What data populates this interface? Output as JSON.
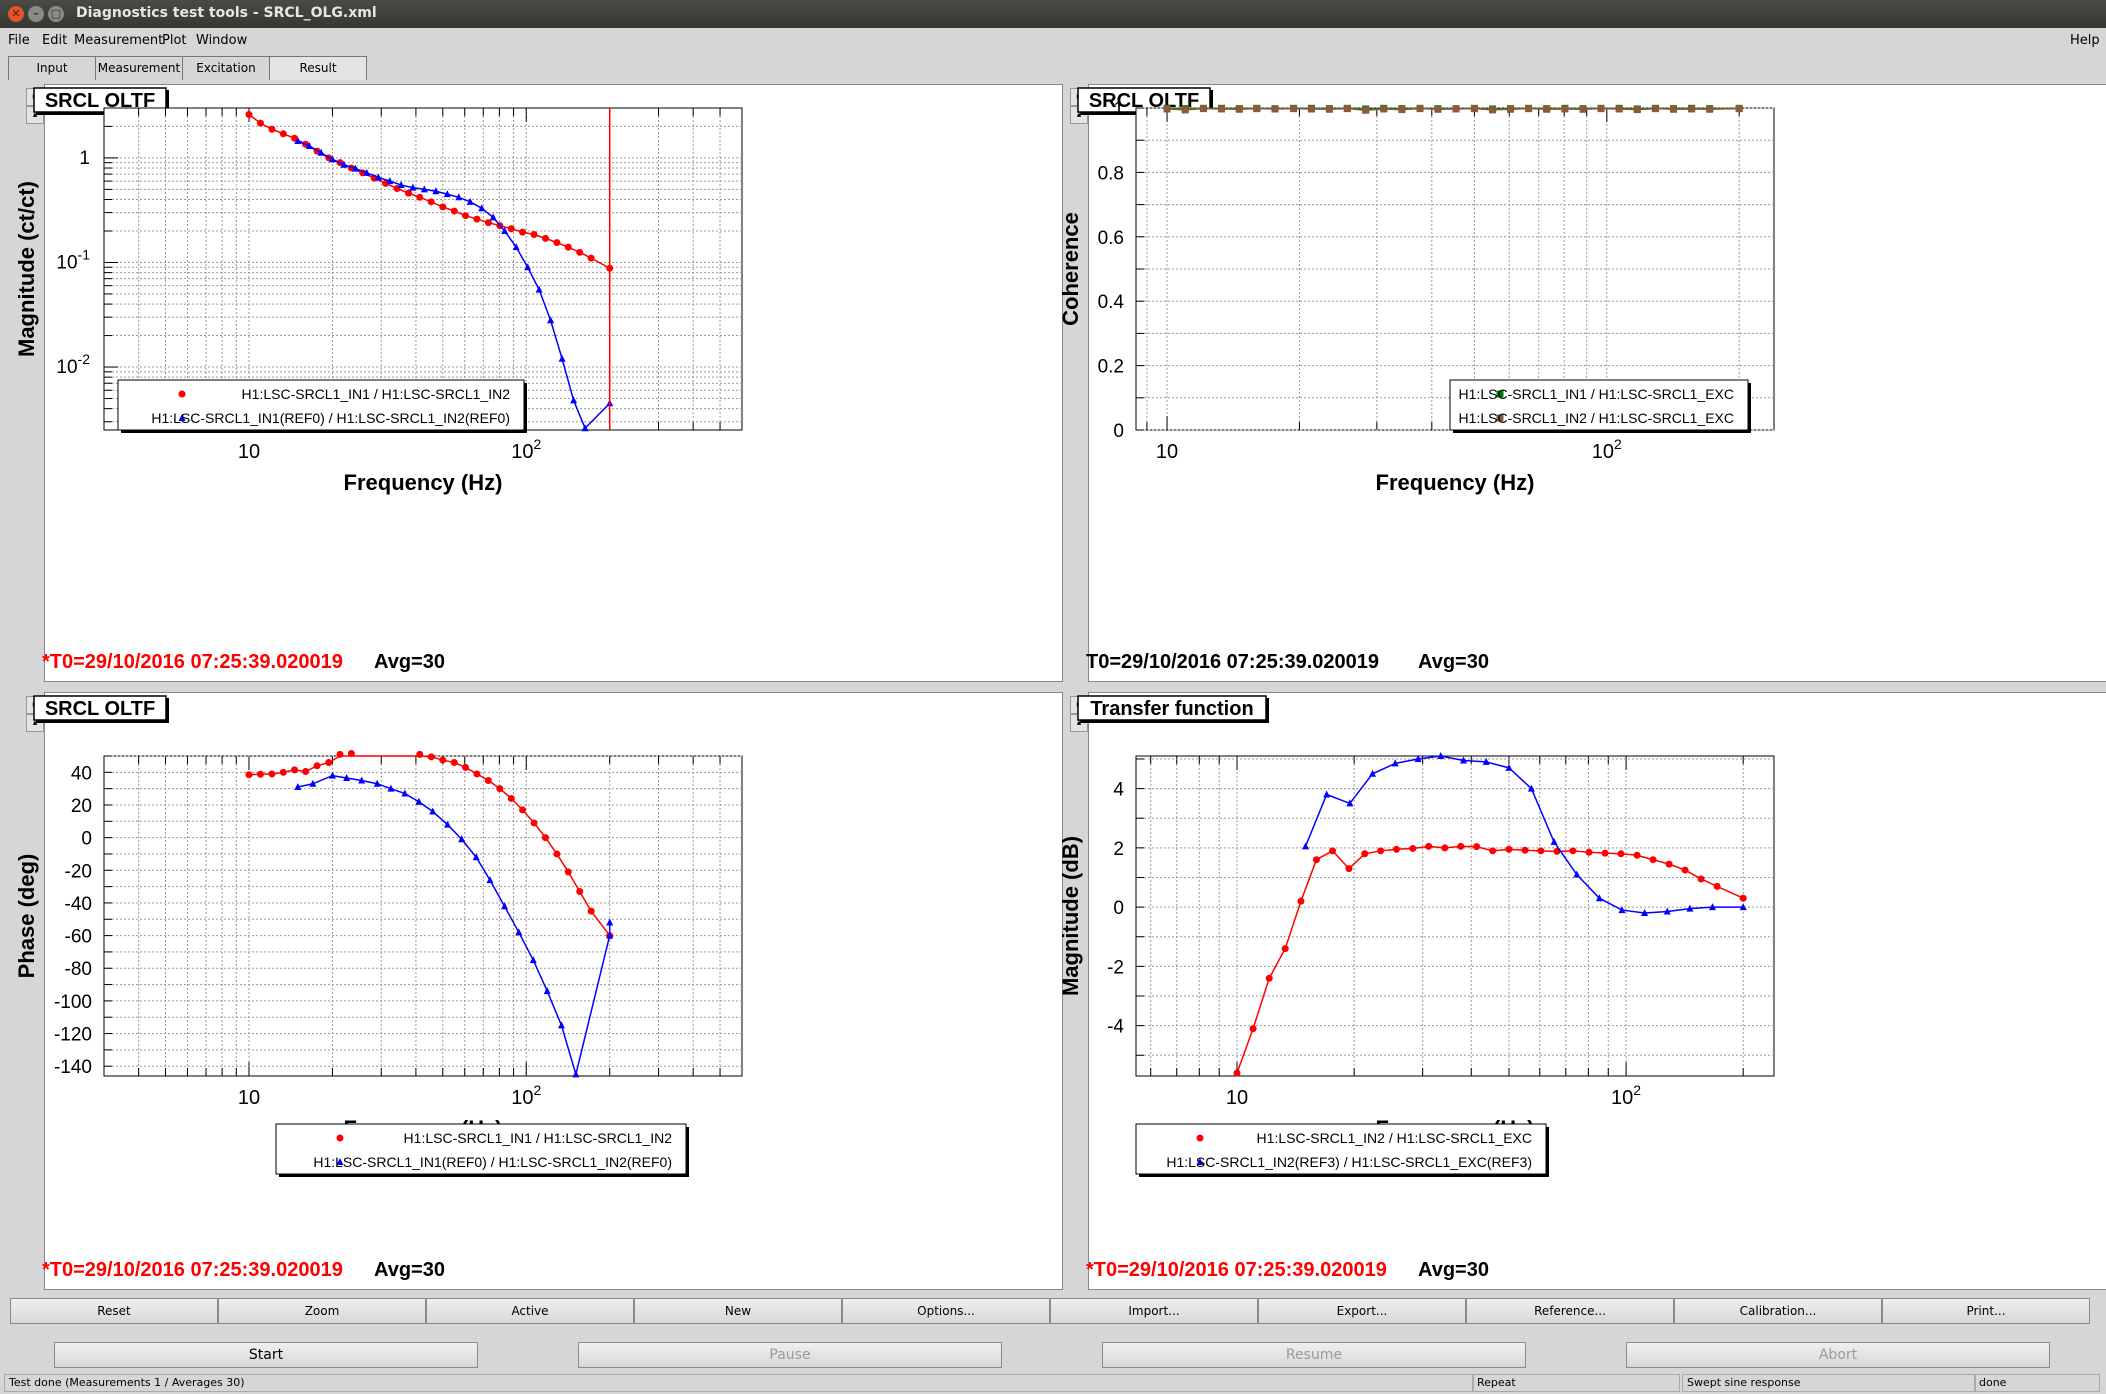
{
  "window": {
    "title": "Diagnostics test tools - SRCL_OLG.xml"
  },
  "menu": {
    "file": "File",
    "edit": "Edit",
    "measurement": "Measurement",
    "plot": "Plot",
    "window": "Window",
    "help": "Help"
  },
  "tabs": [
    "Input",
    "Measurement",
    "Excitation",
    "Result"
  ],
  "panels": [
    {
      "title": "SRCL OLTF",
      "status_t0": "*T0=29/10/2016 07:25:39.020019",
      "status_avg": "Avg=30",
      "ylabel": "Magnitude (ct/ct)",
      "xlabel": "Frequency (Hz)",
      "legend": [
        "H1:LSC-SRCL1_IN1 / H1:LSC-SRCL1_IN2",
        "H1:LSC-SRCL1_IN1(REF0) / H1:LSC-SRCL1_IN2(REF0)"
      ]
    },
    {
      "title": "SRCL OLTF",
      "status_t0": "T0=29/10/2016 07:25:39.020019",
      "status_avg": "Avg=30",
      "ylabel": "Coherence",
      "xlabel": "Frequency (Hz)",
      "legend": [
        "H1:LSC-SRCL1_IN1 / H1:LSC-SRCL1_EXC",
        "H1:LSC-SRCL1_IN2 / H1:LSC-SRCL1_EXC"
      ]
    },
    {
      "title": "SRCL OLTF",
      "status_t0": "*T0=29/10/2016 07:25:39.020019",
      "status_avg": "Avg=30",
      "ylabel": "Phase (deg)",
      "xlabel": "Frequency (Hz)",
      "legend": [
        "H1:LSC-SRCL1_IN1 / H1:LSC-SRCL1_IN2",
        "H1:LSC-SRCL1_IN1(REF0) / H1:LSC-SRCL1_IN2(REF0)"
      ]
    },
    {
      "title": "Transfer function",
      "status_t0": "*T0=29/10/2016 07:25:39.020019",
      "status_avg": "Avg=30",
      "ylabel": "Magnitude (dB)",
      "xlabel": "Frequency (Hz)",
      "legend": [
        "H1:LSC-SRCL1_IN2 / H1:LSC-SRCL1_EXC",
        "H1:LSC-SRCL1_IN2(REF3) / H1:LSC-SRCL1_EXC(REF3)"
      ]
    }
  ],
  "chart_data": [
    {
      "type": "line",
      "title": "SRCL OLTF",
      "xlabel": "Frequency (Hz)",
      "ylabel": "Magnitude (ct/ct)",
      "xscale": "log",
      "yscale": "log",
      "xlim": [
        3,
        600
      ],
      "ylim": [
        0.0025,
        3
      ],
      "x_ticks": [
        "10",
        "10^2"
      ],
      "y_ticks": [
        "10^-2",
        "10^-1",
        "1"
      ],
      "grid": true,
      "legend_position": "bottom-center",
      "colors": [
        "#ff0000",
        "#0000ff"
      ],
      "series": [
        {
          "name": "H1:LSC-SRCL1_IN1 / H1:LSC-SRCL1_IN2",
          "marker": "circle",
          "x": [
            10,
            11,
            12.1,
            13.3,
            14.6,
            16,
            17.6,
            19.4,
            21.3,
            23.4,
            25.7,
            28.3,
            31.1,
            34.2,
            37.6,
            41.3,
            45.4,
            50,
            55,
            60.4,
            66.4,
            73,
            80.3,
            88.3,
            97,
            106.7,
            117.3,
            129,
            141.8,
            155.9,
            171.4,
            200
          ],
          "y": [
            2.6,
            2.15,
            1.88,
            1.7,
            1.54,
            1.35,
            1.16,
            1.0,
            0.9,
            0.8,
            0.72,
            0.64,
            0.57,
            0.51,
            0.46,
            0.42,
            0.38,
            0.34,
            0.31,
            0.28,
            0.26,
            0.24,
            0.225,
            0.21,
            0.195,
            0.185,
            0.17,
            0.155,
            0.14,
            0.125,
            0.11,
            0.088
          ]
        },
        {
          "name": "H1:LSC-SRCL1_IN1(REF0) / H1:LSC-SRCL1_IN2(REF0)",
          "marker": "triangle",
          "x": [
            15,
            16.5,
            18.2,
            20,
            22,
            24.2,
            26.6,
            29.3,
            32.2,
            35.4,
            39,
            42.9,
            47.2,
            51.9,
            57.1,
            62.8,
            69.1,
            76,
            83.6,
            92,
            101.2,
            111.3,
            122.4,
            134.7,
            148.2,
            163,
            200
          ],
          "y": [
            1.45,
            1.3,
            1.12,
            0.97,
            0.86,
            0.79,
            0.72,
            0.65,
            0.6,
            0.55,
            0.52,
            0.5,
            0.48,
            0.45,
            0.42,
            0.38,
            0.33,
            0.27,
            0.2,
            0.14,
            0.09,
            0.055,
            0.028,
            0.012,
            0.0048,
            0.0026,
            0.0045
          ]
        }
      ]
    },
    {
      "type": "line",
      "title": "SRCL OLTF",
      "xlabel": "Frequency (Hz)",
      "ylabel": "Coherence",
      "xscale": "log",
      "xlim": [
        8.5,
        240
      ],
      "ylim": [
        0,
        1
      ],
      "x_ticks": [
        "10",
        "10^2"
      ],
      "y_ticks": [
        "0",
        "0.2",
        "0.4",
        "0.6",
        "0.8",
        "1"
      ],
      "grid": true,
      "legend_position": "bottom-right",
      "colors": [
        "#008000",
        "#8b5a3c"
      ],
      "series": [
        {
          "name": "H1:LSC-SRCL1_IN1 / H1:LSC-SRCL1_EXC",
          "marker": "square",
          "x": [
            10,
            11,
            12.1,
            13.3,
            14.6,
            16,
            17.6,
            19.4,
            21.3,
            23.4,
            25.7,
            28.3,
            31.1,
            34.2,
            37.6,
            41.3,
            45.4,
            50,
            55,
            60.4,
            66.4,
            73,
            80.3,
            88.3,
            97,
            106.7,
            117.3,
            129,
            141.8,
            155.9,
            171.4,
            200
          ],
          "y": [
            0.999,
            0.998,
            0.999,
            0.999,
            0.998,
            0.999,
            0.998,
            0.999,
            0.999,
            0.998,
            0.999,
            0.997,
            0.999,
            0.998,
            0.999,
            0.998,
            0.998,
            0.999,
            0.997,
            0.998,
            0.999,
            0.998,
            0.999,
            0.998,
            0.999,
            0.999,
            0.997,
            0.999,
            0.998,
            0.999,
            0.998,
            0.999
          ]
        },
        {
          "name": "H1:LSC-SRCL1_IN2 / H1:LSC-SRCL1_EXC",
          "marker": "square",
          "x": [
            10,
            11,
            12.1,
            13.3,
            14.6,
            16,
            17.6,
            19.4,
            21.3,
            23.4,
            25.7,
            28.3,
            31.1,
            34.2,
            37.6,
            41.3,
            45.4,
            50,
            55,
            60.4,
            66.4,
            73,
            80.3,
            88.3,
            97,
            106.7,
            117.3,
            129,
            141.8,
            155.9,
            171.4,
            200
          ],
          "y": [
            0.997,
            0.994,
            0.998,
            0.997,
            0.996,
            0.998,
            0.997,
            0.998,
            0.997,
            0.996,
            0.998,
            0.993,
            0.997,
            0.995,
            0.998,
            0.996,
            0.997,
            0.998,
            0.994,
            0.996,
            0.998,
            0.996,
            0.997,
            0.996,
            0.998,
            0.997,
            0.995,
            0.998,
            0.996,
            0.997,
            0.996,
            0.998
          ]
        }
      ]
    },
    {
      "type": "line",
      "title": "SRCL OLTF",
      "xlabel": "Frequency (Hz)",
      "ylabel": "Phase (deg)",
      "xscale": "log",
      "xlim": [
        3,
        600
      ],
      "ylim": [
        -146,
        50
      ],
      "x_ticks": [
        "10",
        "10^2"
      ],
      "y_ticks": [
        "40",
        "20",
        "0",
        "-20",
        "-40",
        "-60",
        "-80",
        "-100",
        "-120",
        "-140"
      ],
      "grid": true,
      "legend_position": "bottom-right",
      "colors": [
        "#ff0000",
        "#0000ff"
      ],
      "series": [
        {
          "name": "H1:LSC-SRCL1_IN1 / H1:LSC-SRCL1_IN2",
          "marker": "circle",
          "x": [
            10,
            11,
            12.1,
            13.3,
            14.6,
            16,
            17.6,
            19.4,
            21.3,
            23.4,
            25.7,
            28.3,
            31.1,
            34.2,
            37.6,
            41.3,
            45.4,
            50,
            55,
            60.4,
            66.4,
            73,
            80.3,
            88.3,
            97,
            106.7,
            117.3,
            129,
            141.8,
            155.9,
            171.4,
            200
          ],
          "y": [
            38.5,
            38.8,
            39,
            40,
            41.5,
            40.5,
            44,
            46,
            51,
            51.5,
            52,
            52.5,
            52,
            52.5,
            52,
            51,
            49.5,
            47.5,
            46,
            43,
            39,
            35,
            30,
            24,
            17,
            9,
            0,
            -10,
            -21,
            -33,
            -45,
            -60
          ]
        },
        {
          "name": "H1:LSC-SRCL1_IN1(REF0) / H1:LSC-SRCL1_IN2(REF0)",
          "marker": "triangle",
          "x": [
            15,
            17,
            20,
            22.5,
            25.5,
            29,
            32.5,
            36.5,
            41,
            46,
            52,
            58.5,
            66,
            74,
            83.5,
            94,
            106,
            119,
            134,
            151,
            200,
            200
          ],
          "y": [
            31,
            33,
            38,
            36.5,
            35,
            33,
            30,
            27,
            22,
            16,
            8,
            -1,
            -12,
            -26,
            -42,
            -58,
            -75,
            -94,
            -115,
            -145,
            -60,
            -52
          ]
        }
      ]
    },
    {
      "type": "line",
      "title": "Transfer function",
      "xlabel": "Frequency (Hz)",
      "ylabel": "Magnitude (dB)",
      "xscale": "log",
      "xlim": [
        5.5,
        240
      ],
      "ylim": [
        -5.7,
        5.1
      ],
      "x_ticks": [
        "10",
        "10^2"
      ],
      "y_ticks": [
        "4",
        "2",
        "0",
        "-2",
        "-4"
      ],
      "grid": true,
      "legend_position": "bottom-left",
      "colors": [
        "#ff0000",
        "#0000ff"
      ],
      "series": [
        {
          "name": "H1:LSC-SRCL1_IN2 / H1:LSC-SRCL1_EXC",
          "marker": "circle",
          "x": [
            10,
            11,
            12.1,
            13.3,
            14.6,
            16,
            17.6,
            19.4,
            21.3,
            23.4,
            25.7,
            28.3,
            31.1,
            34.2,
            37.6,
            41.3,
            45.4,
            50,
            55,
            60.4,
            66.4,
            73,
            80.3,
            88.3,
            97,
            106.7,
            117.3,
            129,
            141.8,
            155.9,
            171.4,
            200
          ],
          "y": [
            -5.6,
            -4.1,
            -2.4,
            -1.4,
            0.2,
            1.6,
            1.9,
            1.3,
            1.8,
            1.9,
            1.95,
            1.98,
            2.05,
            2.0,
            2.05,
            2.04,
            1.9,
            1.95,
            1.92,
            1.9,
            1.88,
            1.9,
            1.85,
            1.82,
            1.8,
            1.75,
            1.6,
            1.45,
            1.25,
            0.95,
            0.7,
            0.3
          ]
        },
        {
          "name": "H1:LSC-SRCL1_IN2(REF3) / H1:LSC-SRCL1_EXC(REF3)",
          "marker": "triangle",
          "x": [
            15,
            17,
            19.5,
            22.3,
            25.5,
            29.2,
            33.4,
            38.2,
            43.7,
            50,
            57.1,
            65.3,
            74.7,
            85.4,
            97.6,
            111.6,
            127.6,
            145.9,
            166.8,
            200
          ],
          "y": [
            2.05,
            3.8,
            3.5,
            4.5,
            4.85,
            5.0,
            5.1,
            4.95,
            4.9,
            4.7,
            4.0,
            2.2,
            1.1,
            0.3,
            -0.1,
            -0.2,
            -0.15,
            -0.05,
            0.0,
            0.0
          ]
        }
      ]
    }
  ],
  "buttons": {
    "row1": [
      "Reset",
      "Zoom",
      "Active",
      "New",
      "Options...",
      "Import...",
      "Export...",
      "Reference...",
      "Calibration...",
      "Print..."
    ],
    "start": "Start",
    "pause": "Pause",
    "resume": "Resume",
    "abort": "Abort"
  },
  "status": {
    "main": "Test done (Measurements 1 / Averages 30)",
    "mode": "Repeat",
    "type": "Swept sine response",
    "state": "done"
  }
}
